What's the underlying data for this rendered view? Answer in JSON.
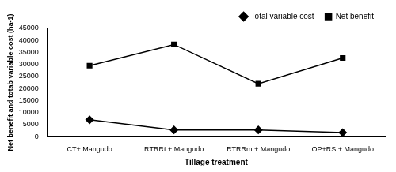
{
  "chart_data": {
    "type": "line",
    "x_label": "Tillage treatment",
    "y_label": "Net benefit and totab variable cost (ha-1)",
    "categories": [
      "CT+ Mangudo",
      "RTRRt + Mangudo",
      "RTRRm + Mangudo",
      "OP+RS + Mangudo"
    ],
    "series": [
      {
        "name": "Total variable cost",
        "color": "#000000",
        "marker": "diamond",
        "line_style": "solid",
        "values": [
          7000,
          2800,
          2800,
          1700
        ]
      },
      {
        "name": "Net benefit",
        "color": "#000000",
        "marker": "square",
        "line_style": "solid",
        "values": [
          29500,
          38300,
          22000,
          32700
        ]
      }
    ],
    "ylim": [
      0,
      45000
    ],
    "yticks": [
      0,
      5000,
      10000,
      15000,
      20000,
      25000,
      30000,
      35000,
      40000,
      45000
    ],
    "grid": false,
    "legend": "top"
  }
}
